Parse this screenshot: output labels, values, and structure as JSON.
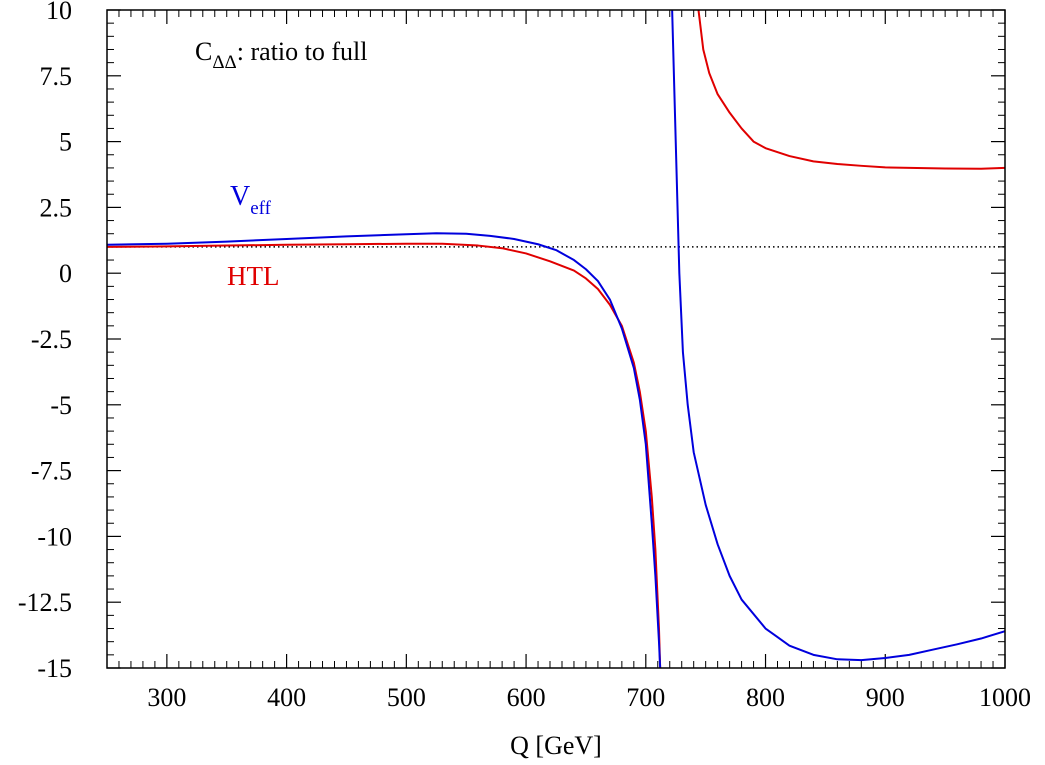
{
  "chart_data": {
    "type": "line",
    "title": "",
    "annotation": {
      "base": "C",
      "subscript": "ΔΔ",
      "rest": ": ratio to full"
    },
    "xlabel": "Q [GeV]",
    "ylabel": "",
    "xlim": [
      250,
      1000
    ],
    "ylim": [
      -15,
      10
    ],
    "xticks": [
      300,
      400,
      500,
      600,
      700,
      800,
      900,
      1000
    ],
    "xtick_labels": [
      "300",
      "400",
      "500",
      "600",
      "700",
      "800",
      "900",
      "1000"
    ],
    "yticks": [
      10,
      7.5,
      5,
      2.5,
      0,
      -2.5,
      -5,
      -7.5,
      -10,
      -12.5,
      -15
    ],
    "ytick_labels": [
      "10",
      "7.5",
      "5",
      "2.5",
      "0",
      "-2.5",
      "-5",
      "-7.5",
      "-10",
      "-12.5",
      "-15"
    ],
    "reference_line": {
      "y": 1,
      "style": "dotted"
    },
    "grid": false,
    "series": [
      {
        "name": "HTL",
        "color": "#e00000",
        "label": {
          "base": "HTL",
          "subscript": ""
        },
        "segments": [
          [
            [
              250,
              1.0
            ],
            [
              300,
              1.02
            ],
            [
              350,
              1.05
            ],
            [
              400,
              1.08
            ],
            [
              450,
              1.1
            ],
            [
              500,
              1.12
            ],
            [
              530,
              1.12
            ],
            [
              560,
              1.05
            ],
            [
              580,
              0.95
            ],
            [
              600,
              0.75
            ],
            [
              620,
              0.45
            ],
            [
              640,
              0.1
            ],
            [
              650,
              -0.2
            ],
            [
              660,
              -0.6
            ],
            [
              670,
              -1.2
            ],
            [
              680,
              -2.0
            ],
            [
              690,
              -3.4
            ],
            [
              695,
              -4.5
            ],
            [
              700,
              -6.0
            ],
            [
              705,
              -8.5
            ],
            [
              708,
              -10.5
            ],
            [
              711,
              -13.5
            ],
            [
              712,
              -15
            ]
          ],
          [
            [
              744,
              10
            ],
            [
              748,
              8.5
            ],
            [
              753,
              7.6
            ],
            [
              760,
              6.8
            ],
            [
              770,
              6.1
            ],
            [
              780,
              5.5
            ],
            [
              790,
              5.0
            ],
            [
              800,
              4.75
            ],
            [
              820,
              4.45
            ],
            [
              840,
              4.25
            ],
            [
              860,
              4.15
            ],
            [
              880,
              4.08
            ],
            [
              900,
              4.02
            ],
            [
              950,
              3.98
            ],
            [
              980,
              3.97
            ],
            [
              1000,
              4.0
            ]
          ]
        ]
      },
      {
        "name": "V_eff",
        "color": "#0000dd",
        "label": {
          "base": "V",
          "subscript": "eff"
        },
        "segments": [
          [
            [
              250,
              1.08
            ],
            [
              300,
              1.12
            ],
            [
              350,
              1.2
            ],
            [
              400,
              1.3
            ],
            [
              450,
              1.4
            ],
            [
              500,
              1.48
            ],
            [
              525,
              1.52
            ],
            [
              550,
              1.5
            ],
            [
              570,
              1.42
            ],
            [
              590,
              1.3
            ],
            [
              610,
              1.1
            ],
            [
              625,
              0.88
            ],
            [
              640,
              0.5
            ],
            [
              650,
              0.15
            ],
            [
              660,
              -0.3
            ],
            [
              670,
              -1.0
            ],
            [
              680,
              -2.1
            ],
            [
              690,
              -3.6
            ],
            [
              695,
              -4.8
            ],
            [
              700,
              -6.5
            ],
            [
              705,
              -9.5
            ],
            [
              708,
              -11.5
            ],
            [
              711,
              -14.0
            ],
            [
              712,
              -15
            ]
          ],
          [
            [
              722,
              10
            ],
            [
              725,
              5.0
            ],
            [
              728,
              0.0
            ],
            [
              731,
              -3.0
            ],
            [
              735,
              -5.0
            ],
            [
              740,
              -6.8
            ],
            [
              750,
              -8.8
            ],
            [
              760,
              -10.3
            ],
            [
              770,
              -11.5
            ],
            [
              780,
              -12.4
            ],
            [
              800,
              -13.5
            ],
            [
              820,
              -14.15
            ],
            [
              840,
              -14.5
            ],
            [
              860,
              -14.67
            ],
            [
              880,
              -14.7
            ],
            [
              900,
              -14.62
            ],
            [
              920,
              -14.5
            ],
            [
              940,
              -14.3
            ],
            [
              960,
              -14.1
            ],
            [
              980,
              -13.88
            ],
            [
              1000,
              -13.6
            ]
          ]
        ]
      }
    ]
  }
}
